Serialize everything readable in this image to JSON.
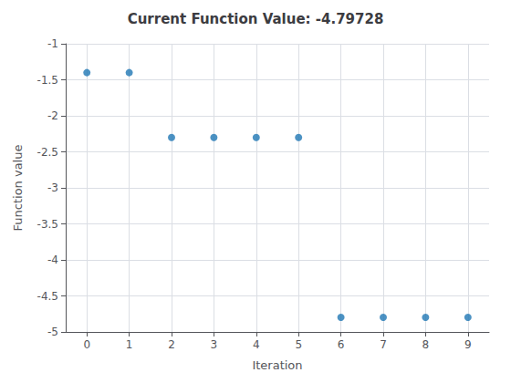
{
  "chart_data": {
    "type": "scatter",
    "title": "Current Function Value: -4.79728",
    "xlabel": "Iteration",
    "ylabel": "Function value",
    "x": [
      0,
      1,
      2,
      3,
      4,
      5,
      6,
      7,
      8,
      9
    ],
    "values": [
      -1.4,
      -1.4,
      -2.3,
      -2.3,
      -2.3,
      -2.3,
      -4.79728,
      -4.79728,
      -4.79728,
      -4.79728
    ],
    "color": "#1f77b4",
    "xlim": [
      -0.5,
      9.5
    ],
    "ylim": [
      -5.0,
      -1.0
    ],
    "xticks": [
      0,
      1,
      2,
      3,
      4,
      5,
      6,
      7,
      8,
      9
    ],
    "yticks": [
      -1,
      -1.5,
      -2,
      -2.5,
      -3,
      -3.5,
      -4,
      -4.5,
      -5
    ],
    "grid": true
  }
}
